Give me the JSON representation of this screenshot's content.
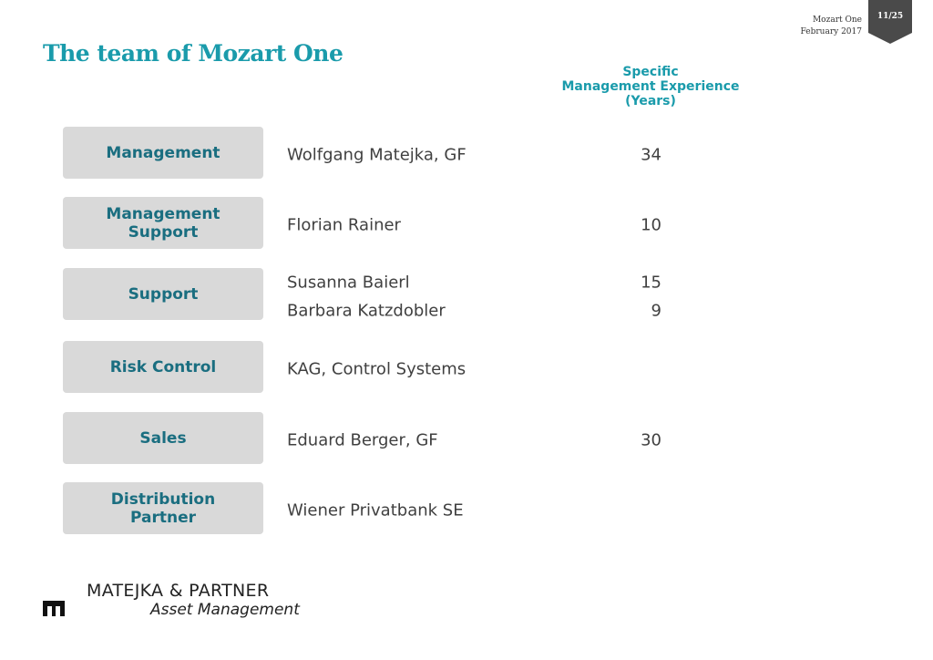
{
  "header": {
    "product": "Mozart One",
    "date": "February 2017",
    "page": "11/25",
    "title": "The team of Mozart One"
  },
  "column_header": [
    "Specific",
    "Management Experience",
    "(Years)"
  ],
  "rows": [
    {
      "role": [
        "Management"
      ],
      "entries": [
        {
          "name": "Wolfgang Matejka, GF",
          "years": "34"
        }
      ]
    },
    {
      "role": [
        "Management",
        "Support"
      ],
      "entries": [
        {
          "name": "Florian Rainer",
          "years": "10"
        }
      ]
    },
    {
      "role": [
        "Support"
      ],
      "entries": [
        {
          "name": "Susanna Baierl",
          "years": "15"
        },
        {
          "name": "Barbara Katzdobler",
          "years": "9"
        }
      ]
    },
    {
      "role": [
        "Risk Control"
      ],
      "entries": [
        {
          "name": "KAG, Control Systems"
        }
      ]
    },
    {
      "role": [
        "Sales"
      ],
      "entries": [
        {
          "name": "Eduard Berger, GF",
          "years": "30"
        }
      ]
    },
    {
      "role": [
        "Distribution",
        "Partner"
      ],
      "entries": [
        {
          "name": "Wiener Privatbank SE"
        }
      ]
    }
  ],
  "footer": {
    "company": "MATEJKA & PARTNER",
    "division": "Asset Management"
  }
}
